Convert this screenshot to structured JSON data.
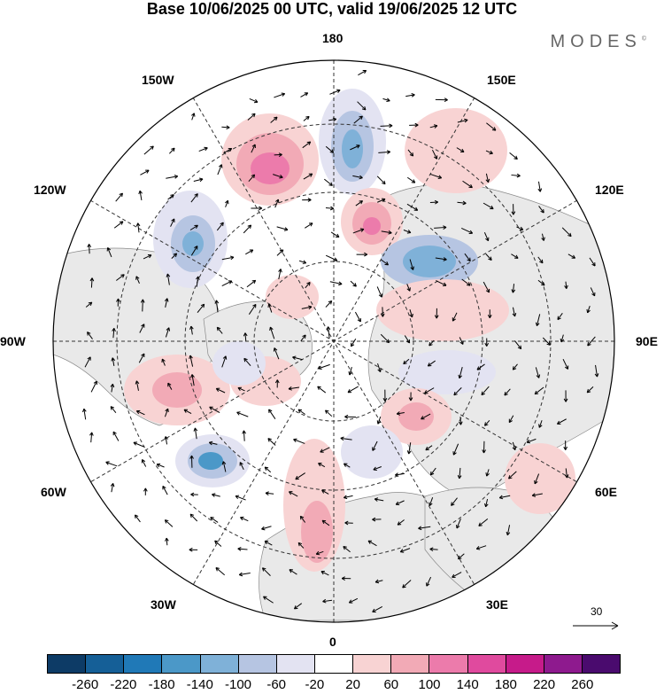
{
  "title": "Base 10/06/2025 00 UTC, valid 19/06/2025 12 UTC",
  "brand": "MODES",
  "brand_mark": "©",
  "longitude_labels": [
    "180",
    "150E",
    "120E",
    "90E",
    "60E",
    "30E",
    "0",
    "30W",
    "60W",
    "90W",
    "120W",
    "150W"
  ],
  "vector_scale_label": "30",
  "colorbar": {
    "colors": [
      "#0d3b66",
      "#155f97",
      "#2079b7",
      "#4b98c8",
      "#7fb1d8",
      "#b6c5e2",
      "#e3e3f2",
      "#ffffff",
      "#f8d3d3",
      "#f2aab6",
      "#ec7bab",
      "#e04a9e",
      "#c61b8a",
      "#8e1a8e",
      "#4a0b6e"
    ],
    "tick_labels": [
      "-260",
      "-220",
      "-180",
      "-140",
      "-100",
      "-60",
      "-20",
      "20",
      "60",
      "100",
      "140",
      "180",
      "220",
      "260"
    ]
  }
}
